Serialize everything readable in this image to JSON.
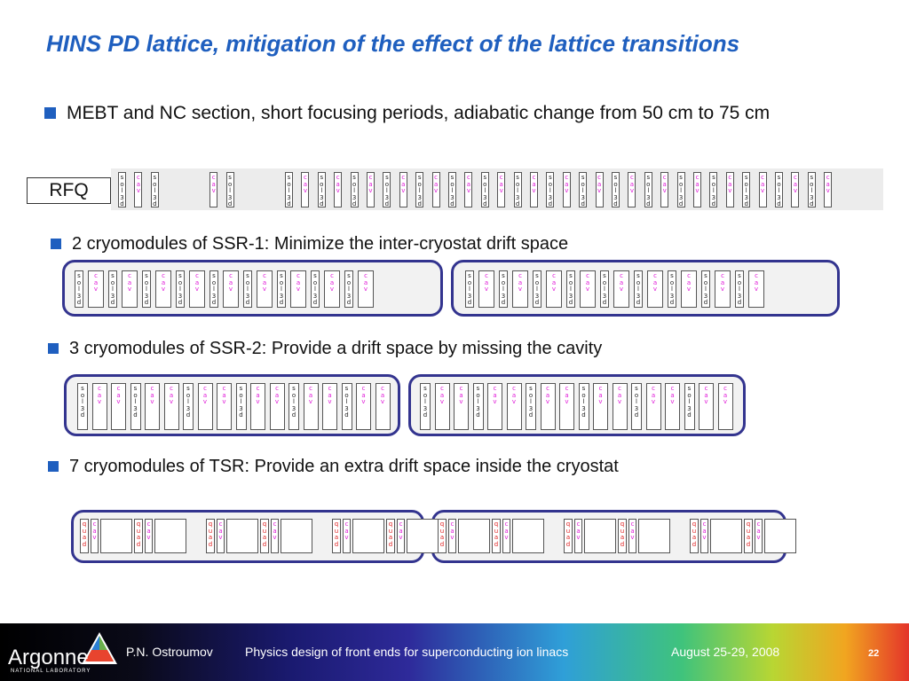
{
  "slide": {
    "title": "HINS PD lattice, mitigation of the effect of the lattice transitions",
    "bullets": [
      "MEBT and NC section, short focusing periods, adiabatic change from 50 cm to 75 cm",
      "2 cryomodules of SSR-1: Minimize the inter-cryostat drift space",
      "3 cryomodules of SSR-2: Provide a drift space by missing the cavity",
      "7 cryomodules of TSR: Provide an extra drift space inside the cryostat"
    ]
  },
  "diagram": {
    "rfq_label": "RFQ",
    "solenoid_label": "sol3d",
    "cavity_label": "cav",
    "quad_label": "quad",
    "mebt_sequence": [
      "s",
      "c",
      "s",
      "gap",
      "c",
      "s",
      "gap",
      "s",
      "c",
      "s",
      "c",
      "s",
      "c",
      "s",
      "c",
      "s",
      "c",
      "s",
      "c",
      "s",
      "c",
      "s",
      "c",
      "s",
      "c",
      "s",
      "c",
      "s",
      "c",
      "s",
      "c",
      "s",
      "c",
      "s",
      "c",
      "s",
      "c",
      "s",
      "c",
      "s",
      "c"
    ],
    "ssr1_cryomodule": [
      "s",
      "c",
      "s",
      "c",
      "s",
      "c",
      "s",
      "c",
      "s",
      "c",
      "s",
      "c",
      "s",
      "c",
      "s",
      "c",
      "s",
      "c"
    ],
    "ssr2_cryomodule": [
      "s",
      "c",
      "c",
      "s",
      "c",
      "c",
      "s",
      "c",
      "c",
      "s",
      "c",
      "c",
      "s",
      "c",
      "c",
      "s",
      "c",
      "c"
    ],
    "tsr_cryomodule": [
      "q",
      "c",
      "big",
      "q",
      "c",
      "big",
      "gap",
      "q",
      "c",
      "big",
      "q",
      "c",
      "big",
      "gap",
      "q",
      "c",
      "big",
      "q",
      "c",
      "big"
    ],
    "colors": {
      "cryostat_border": "#33348f",
      "cavity": "#e01ad8",
      "quad": "#e02020",
      "title": "#1f5fbf"
    }
  },
  "footer": {
    "logo_text": "Argonne",
    "logo_subtext": "NATIONAL LABORATORY",
    "author": "P.N. Ostroumov",
    "talk_title": "Physics design of front ends for superconducting ion linacs",
    "date": "August 25-29, 2008",
    "page_number": "22"
  }
}
